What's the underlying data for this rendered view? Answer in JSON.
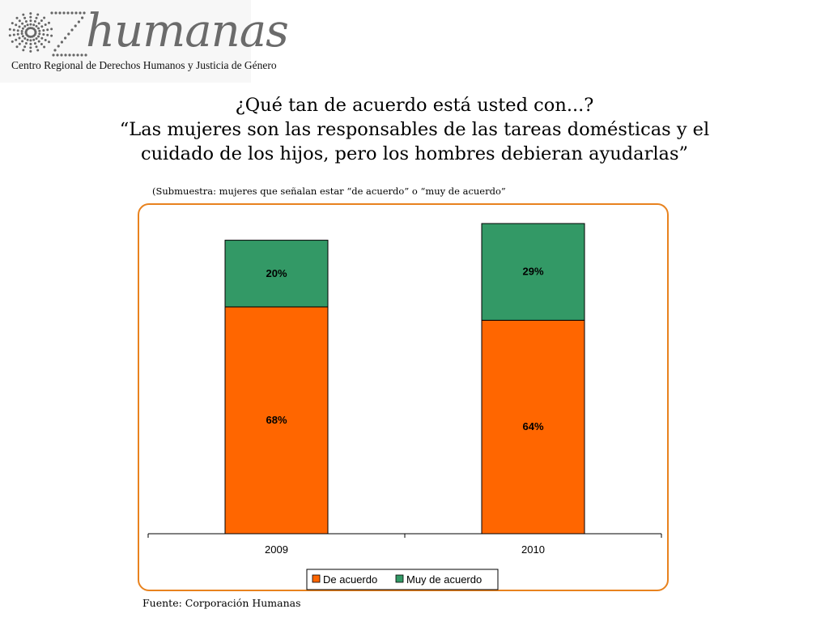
{
  "logo": {
    "wordmark": "humanas",
    "tagline": "Centro Regional de Derechos Humanos y Justicia de Género"
  },
  "title": {
    "line1": "¿Qué tan de acuerdo está usted con...?",
    "line2": "“Las mujeres son las responsables de las tareas domésticas y el",
    "line3": "cuidado de los hijos, pero los hombres debieran ayudarlas”"
  },
  "subtitle": "(Submuestra: mujeres que señalan estar “de acuerdo” o “muy de acuerdo”",
  "source": "Fuente: Corporación Humanas",
  "chart_data": {
    "type": "bar",
    "stacked": true,
    "categories": [
      "2009",
      "2010"
    ],
    "series": [
      {
        "name": "De acuerdo",
        "values": [
          68,
          64
        ],
        "labels": [
          "68%",
          "64%"
        ],
        "color": "#ff6600"
      },
      {
        "name": "Muy de acuerdo",
        "values": [
          20,
          29
        ],
        "labels": [
          "20%",
          "29%"
        ],
        "color": "#339966"
      }
    ],
    "ylim": [
      0,
      93
    ],
    "grid": false,
    "legend": "bottom",
    "frame_color": "#e8821e"
  }
}
